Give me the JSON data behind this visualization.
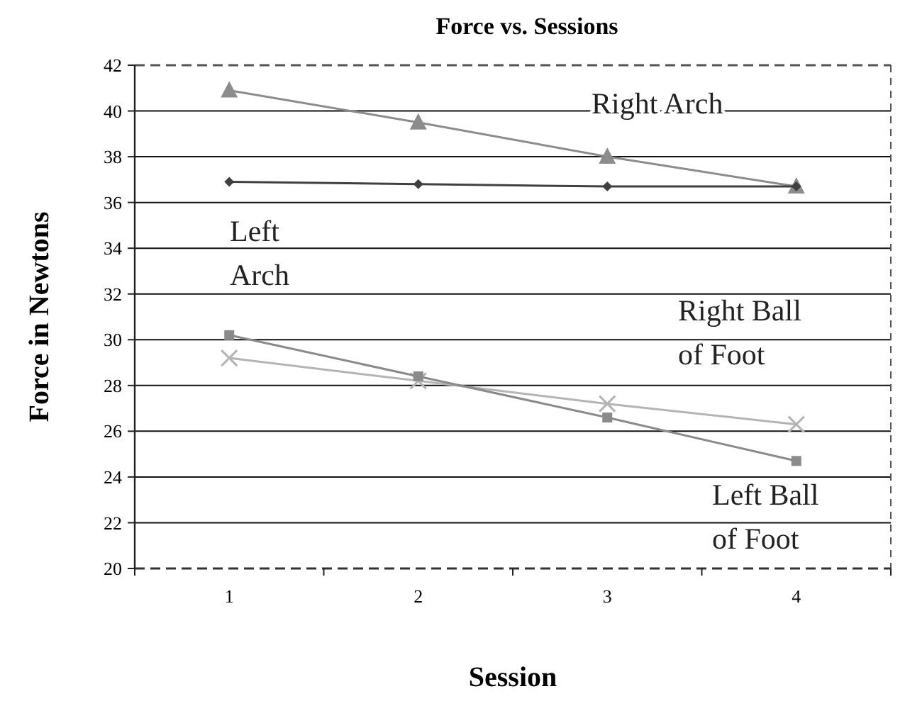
{
  "chart_data": {
    "type": "line",
    "title": "Force vs. Sessions",
    "xlabel": "Session",
    "ylabel": "Force in Newtons",
    "categories": [
      "1",
      "2",
      "3",
      "4"
    ],
    "ylim": [
      20,
      42
    ],
    "yticks": [
      20,
      22,
      24,
      26,
      28,
      30,
      32,
      34,
      36,
      38,
      40,
      42
    ],
    "grid": "y",
    "line_style": "solid",
    "series": [
      {
        "name": "Right Arch",
        "color": "#8c8c8c",
        "marker": "triangle",
        "values": [
          40.9,
          39.5,
          38.0,
          36.7
        ]
      },
      {
        "name": "Left Arch",
        "color": "#404040",
        "marker": "diamond",
        "values": [
          36.9,
          36.8,
          36.7,
          36.7
        ]
      },
      {
        "name": "Right Ball of Foot",
        "color": "#b4b4b4",
        "marker": "cross",
        "values": [
          29.2,
          28.2,
          27.2,
          26.3
        ]
      },
      {
        "name": "Left Ball of Foot",
        "color": "#8a8a8a",
        "marker": "square",
        "values": [
          30.2,
          28.4,
          26.6,
          24.7
        ]
      }
    ]
  }
}
